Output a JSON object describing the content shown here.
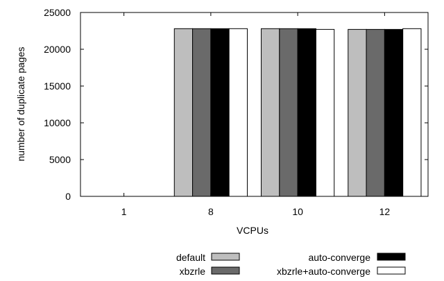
{
  "chart_data": {
    "type": "bar",
    "xlabel": "VCPUs",
    "ylabel": "number of duplicate pages",
    "categories": [
      "1",
      "8",
      "10",
      "12"
    ],
    "ylim": [
      0,
      25000
    ],
    "yticks": [
      0,
      5000,
      10000,
      15000,
      20000,
      25000
    ],
    "grid": false,
    "legend_position": "bottom",
    "series": [
      {
        "name": "default",
        "color": "#bebebe",
        "values": [
          0,
          22800,
          22800,
          22700
        ]
      },
      {
        "name": "xbzrle",
        "color": "#6a6a6a",
        "values": [
          0,
          22800,
          22800,
          22700
        ]
      },
      {
        "name": "auto-converge",
        "color": "#000000",
        "values": [
          0,
          22800,
          22800,
          22700
        ]
      },
      {
        "name": "xbzrle+auto-converge",
        "color": "#ffffff",
        "values": [
          0,
          22800,
          22700,
          22800
        ]
      }
    ]
  }
}
